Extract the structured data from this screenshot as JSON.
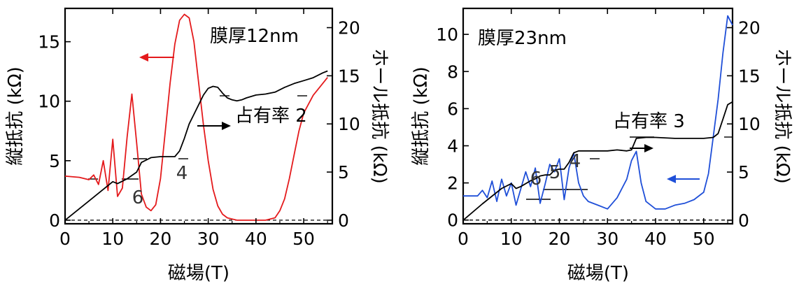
{
  "chart_data": [
    {
      "type": "line",
      "title": "膜厚12nm",
      "xlabel": "磁場(T)",
      "ylabel_left": "縦抵抗 (kΩ)",
      "ylabel_right": "ホール抵抗 (kΩ)",
      "xlim": [
        0,
        56
      ],
      "ylim_left": [
        -0.3,
        17.8
      ],
      "ylim_right": [
        -0.37,
        22.0
      ],
      "xticks": [
        "0",
        "10",
        "20",
        "30",
        "40",
        "50"
      ],
      "yticks_left": [
        "0",
        "5",
        "10",
        "15"
      ],
      "yticks_right": [
        "0",
        "5",
        "10",
        "15",
        "20"
      ],
      "colors": {
        "longitudinal": "#e41a1c",
        "hall": "#000000"
      },
      "annotations": {
        "filling": "占有率 2",
        "levels": [
          "6",
          "4"
        ]
      },
      "series": [
        {
          "role": "longitudinal",
          "x": [
            0,
            3,
            5,
            6,
            7,
            8,
            9,
            10,
            11,
            12,
            13,
            14,
            15,
            16,
            17,
            18,
            19,
            20,
            21,
            22,
            23,
            24,
            25,
            26,
            27,
            28,
            29,
            30,
            31,
            32,
            33,
            34,
            35,
            36,
            37,
            38,
            40,
            42,
            44,
            45,
            46,
            47,
            48,
            49,
            50,
            52,
            54,
            55
          ],
          "y": [
            3.7,
            3.6,
            3.4,
            3.8,
            3.0,
            5.0,
            2.5,
            6.8,
            2.0,
            2.7,
            7.0,
            10.6,
            6.5,
            2.2,
            1.1,
            0.8,
            1.3,
            3.5,
            7.5,
            11.5,
            14.8,
            16.8,
            17.3,
            17.0,
            15.0,
            11.5,
            8.0,
            5.0,
            2.6,
            1.2,
            0.5,
            0.2,
            0.1,
            0.0,
            0.0,
            0.0,
            0.0,
            0.0,
            0.2,
            0.8,
            1.8,
            3.5,
            5.5,
            7.5,
            9.0,
            10.5,
            11.5,
            12.0
          ]
        },
        {
          "role": "hall",
          "x": [
            0,
            5,
            8,
            10,
            11,
            13,
            15,
            16,
            18,
            20,
            23,
            24,
            25,
            26,
            27,
            28,
            29,
            30,
            31,
            32,
            33,
            34,
            35,
            36,
            37,
            38,
            40,
            42,
            44,
            46,
            48,
            50,
            52,
            54,
            55
          ],
          "y": [
            0.0,
            2.0,
            3.2,
            4.0,
            3.8,
            4.3,
            5.0,
            6.0,
            6.5,
            6.6,
            6.6,
            7.2,
            8.5,
            10.0,
            11.0,
            12.0,
            13.0,
            13.7,
            13.9,
            13.8,
            13.2,
            12.7,
            12.5,
            12.4,
            12.5,
            12.7,
            13.0,
            13.1,
            13.3,
            13.8,
            14.2,
            14.5,
            14.8,
            15.3,
            15.5
          ]
        }
      ]
    },
    {
      "type": "line",
      "title": "膜厚23nm",
      "xlabel": "磁場(T)",
      "ylabel_left": "縦抵抗 (kΩ)",
      "ylabel_right": "ホール抵抗 (kΩ)",
      "xlim": [
        0,
        56
      ],
      "ylim_left": [
        -0.2,
        11.4
      ],
      "ylim_right": [
        -0.37,
        22.0
      ],
      "xticks": [
        "0",
        "10",
        "20",
        "30",
        "40",
        "50"
      ],
      "yticks_left": [
        "0",
        "2",
        "4",
        "6",
        "8",
        "10"
      ],
      "yticks_right": [
        "0",
        "5",
        "10",
        "15",
        "20"
      ],
      "colors": {
        "longitudinal": "#1f4fd8",
        "hall": "#000000"
      },
      "annotations": {
        "filling": "占有率 3",
        "levels": [
          "6",
          "5",
          "4"
        ]
      },
      "series": [
        {
          "role": "longitudinal",
          "x": [
            0,
            3,
            4,
            5,
            6,
            7,
            8,
            9,
            10,
            11,
            12,
            13,
            14,
            15,
            16,
            17,
            18,
            19,
            20,
            21,
            22,
            23,
            24,
            25,
            26,
            28,
            30,
            32,
            34,
            35,
            36,
            37,
            38,
            40,
            42,
            44,
            46,
            48,
            50,
            51,
            52,
            53,
            54,
            55,
            56
          ],
          "y": [
            1.3,
            1.3,
            1.6,
            1.2,
            2.1,
            1.0,
            2.2,
            1.3,
            2.0,
            0.8,
            1.7,
            2.6,
            1.8,
            2.8,
            0.9,
            1.9,
            3.0,
            2.6,
            3.3,
            1.1,
            2.8,
            3.6,
            2.0,
            1.3,
            1.0,
            0.8,
            0.6,
            1.2,
            2.2,
            3.2,
            3.7,
            2.0,
            1.0,
            0.6,
            0.6,
            0.8,
            0.9,
            1.1,
            1.5,
            2.5,
            4.5,
            6.5,
            9.0,
            11.0,
            10.5
          ]
        },
        {
          "role": "hall",
          "x": [
            0,
            4,
            8,
            10,
            11,
            12,
            14,
            15,
            16,
            17,
            18,
            19,
            20,
            21,
            22,
            23,
            24,
            26,
            28,
            30,
            32,
            34,
            35,
            36,
            38,
            40,
            44,
            48,
            50,
            52,
            53,
            54,
            55,
            56
          ],
          "y": [
            0.0,
            1.7,
            3.3,
            3.8,
            3.3,
            3.5,
            4.1,
            4.3,
            4.6,
            4.7,
            4.7,
            5.2,
            5.3,
            5.3,
            6.0,
            7.0,
            7.2,
            7.2,
            7.2,
            7.2,
            7.3,
            7.2,
            7.3,
            8.5,
            8.6,
            8.6,
            8.5,
            8.5,
            8.5,
            8.6,
            9.0,
            10.5,
            12.0,
            12.3
          ]
        }
      ]
    }
  ]
}
